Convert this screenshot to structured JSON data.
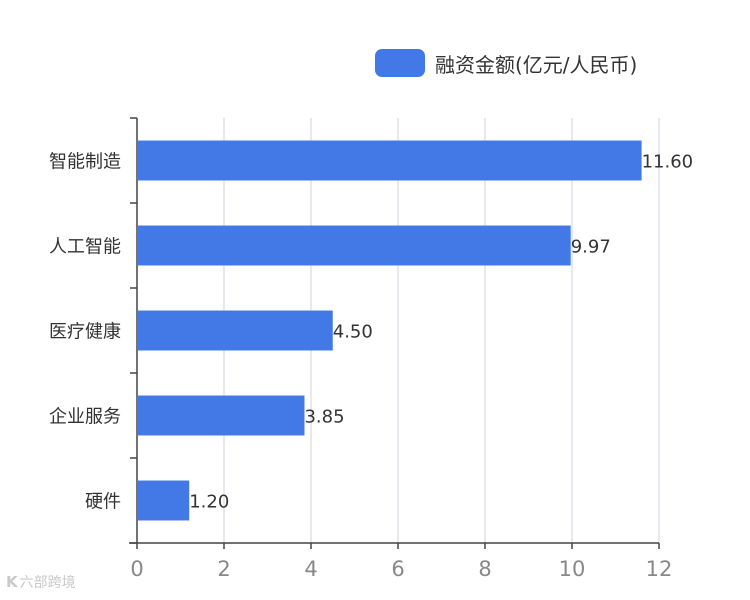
{
  "chart_data": {
    "type": "bar",
    "orientation": "horizontal",
    "categories": [
      "智能制造",
      "人工智能",
      "医疗健康",
      "企业服务",
      "硬件"
    ],
    "series": [
      {
        "name": "融资金额(亿元/人民币)",
        "values": [
          11.6,
          9.97,
          4.5,
          3.85,
          1.2
        ],
        "color": "#4379e6"
      }
    ],
    "data_labels": [
      "11.60",
      "9.97",
      "4.50",
      "3.85",
      "1.20"
    ],
    "xlim": [
      0,
      12
    ],
    "xticks": [
      0,
      2,
      4,
      6,
      8,
      10,
      12
    ],
    "grid": "vertical",
    "legend_position": "top-right"
  },
  "watermark": {
    "logo": "K",
    "text": "六部跨境"
  },
  "colors": {
    "bar": "#4379e6",
    "grid": "#dde3ea",
    "axis": "#444444",
    "tick_label": "#888888",
    "category_label": "#333333"
  }
}
